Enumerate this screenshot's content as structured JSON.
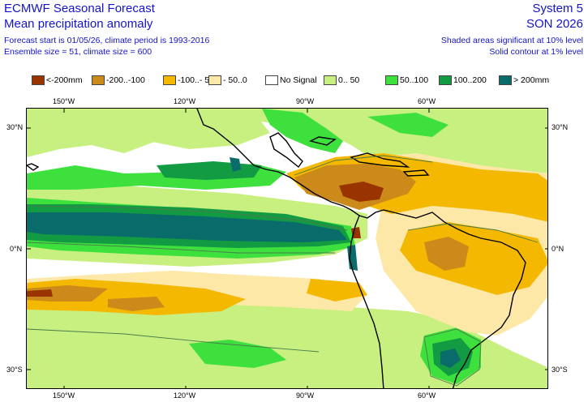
{
  "header": {
    "title": "ECMWF Seasonal Forecast",
    "subtitle": "Mean precipitation anomaly",
    "forecast_line": "Forecast start is 01/05/26, climate period is 1993-2016",
    "ensemble_line": "Ensemble size = 51, climate size = 600",
    "system": "System 5",
    "season": "SON 2026",
    "note_shaded": "Shaded areas significant at 10% level",
    "note_contour": "Solid contour at 1% level"
  },
  "legend": [
    {
      "label": "<-200mm",
      "color": "#993300"
    },
    {
      "label": "-200..-100",
      "color": "#cc8a1a"
    },
    {
      "label": "-100..- 50",
      "color": "#f5b800"
    },
    {
      "label": "- 50..0",
      "color": "#fde8a8"
    },
    {
      "label": "No Signal",
      "color": "#ffffff"
    },
    {
      "label": "0.. 50",
      "color": "#c8f080"
    },
    {
      "label": "50..100",
      "color": "#3ee03e"
    },
    {
      "label": "100..200",
      "color": "#139b43"
    },
    {
      "label": "> 200mm",
      "color": "#0a6b6b"
    }
  ],
  "axes": {
    "lon_top": [
      "150°W",
      "120°W",
      "90°W",
      "60°W"
    ],
    "lon_bottom": [
      "150°W",
      "120°W",
      "90°W",
      "60°W"
    ],
    "lat_left": [
      "30°N",
      "0°N",
      "30°S"
    ],
    "lat_right": [
      "30°N",
      "0°N",
      "30°S"
    ]
  },
  "map": {
    "region": "Eastern Pacific, Central and South America",
    "background_color": "#ffffff",
    "coast_color": "#000000",
    "contour_color": "#4a7a4a"
  }
}
